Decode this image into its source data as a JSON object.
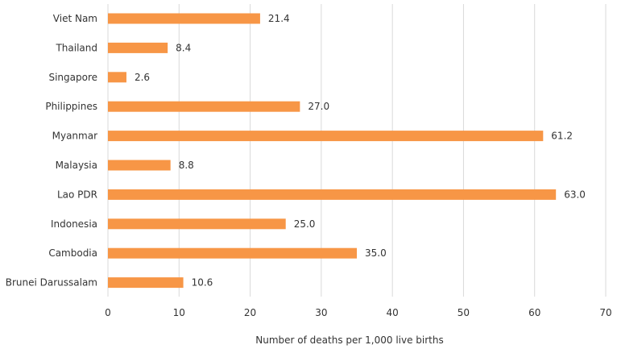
{
  "chart_data": {
    "type": "bar",
    "orientation": "horizontal",
    "categories": [
      "Viet Nam",
      "Thailand",
      "Singapore",
      "Philippines",
      "Myanmar",
      "Malaysia",
      "Lao PDR",
      "Indonesia",
      "Cambodia",
      "Brunei Darussalam"
    ],
    "values": [
      21.4,
      8.4,
      2.6,
      27.0,
      61.2,
      8.8,
      63.0,
      25.0,
      35.0,
      10.6
    ],
    "value_labels": [
      "21.4",
      "8.4",
      "2.6",
      "27.0",
      "61.2",
      "8.8",
      "63.0",
      "25.0",
      "35.0",
      "10.6"
    ],
    "xlabel": "Number of deaths per 1,000 live births",
    "ylabel": "",
    "xlim": [
      0,
      70
    ],
    "xticks": [
      0,
      10,
      20,
      30,
      40,
      50,
      60,
      70
    ],
    "grid": "vertical",
    "legend": "none",
    "bar_color": "#F79646",
    "grid_color": "#D9D9D9"
  }
}
